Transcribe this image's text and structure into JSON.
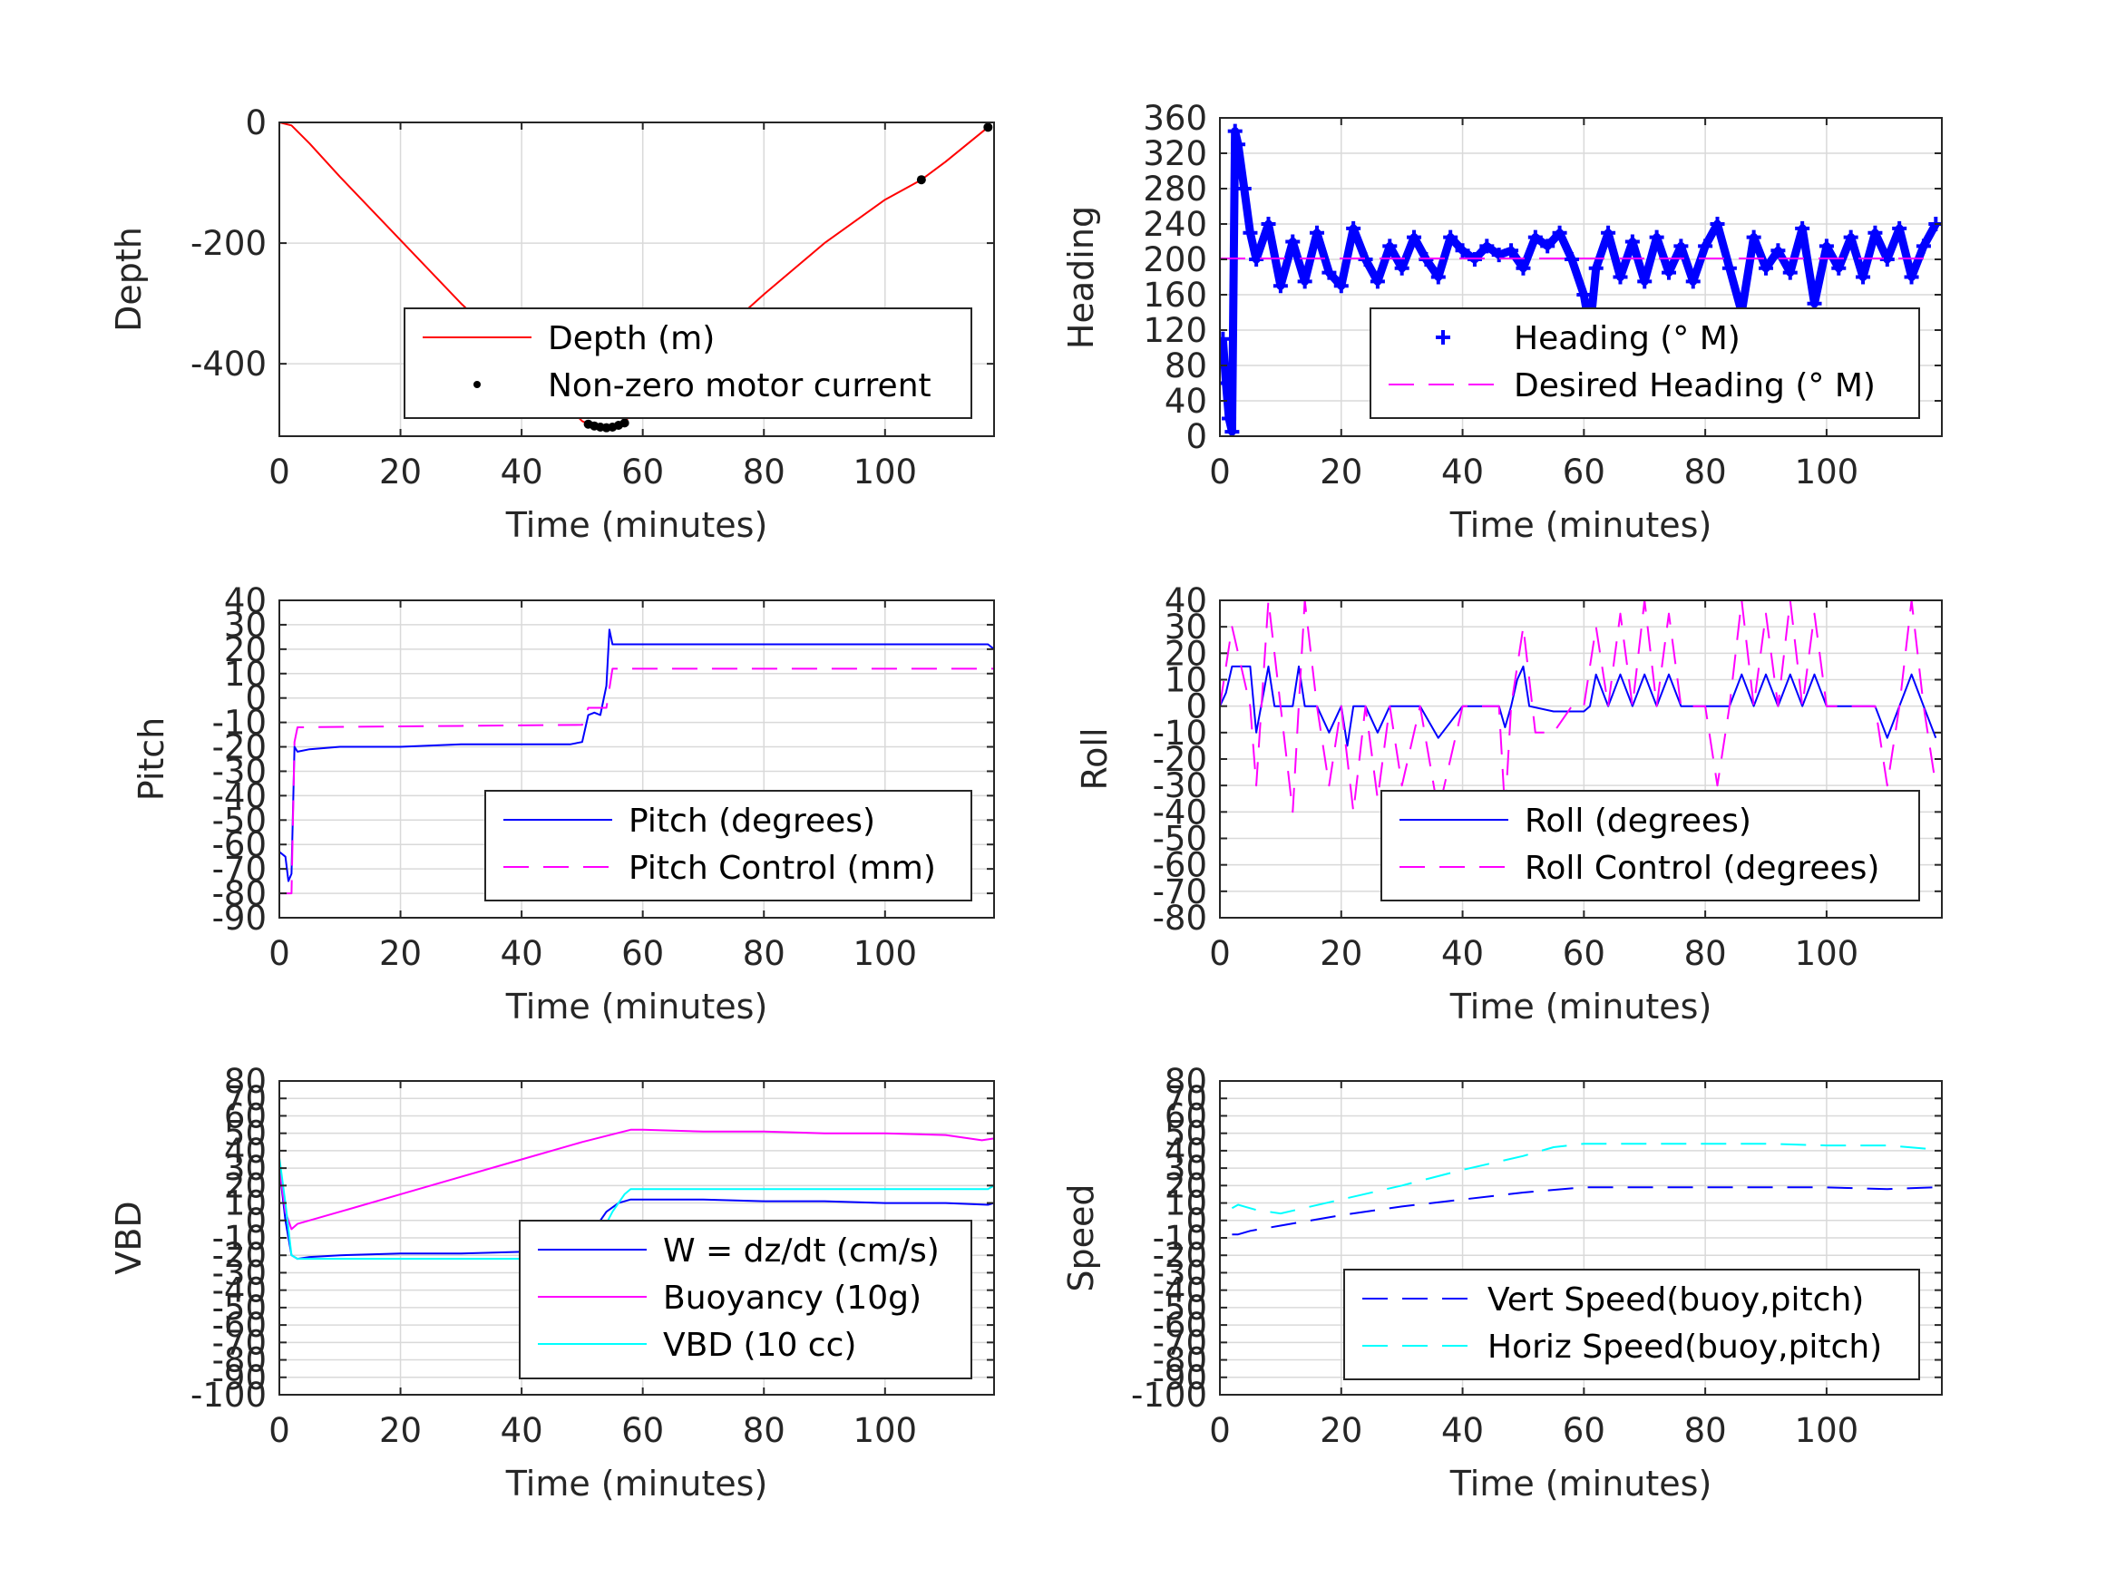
{
  "chart_data": [
    {
      "type": "line",
      "xlabel": "Time (minutes)",
      "ylabel": "Depth",
      "xlim": [
        0,
        118
      ],
      "ylim": [
        -520,
        0
      ],
      "xticks": [
        0,
        20,
        40,
        60,
        80,
        100
      ],
      "yticks": [
        0,
        -200,
        -400
      ],
      "ytick_labels": [
        "0",
        "-200",
        "-400"
      ],
      "legend": "inside-lower-right",
      "series": [
        {
          "name": "Depth (m)",
          "style": "solid",
          "color": "#ff0000",
          "x": [
            0,
            2,
            5,
            10,
            20,
            30,
            40,
            50,
            52,
            55,
            57,
            60,
            70,
            80,
            90,
            100,
            106,
            110,
            117
          ],
          "y": [
            0,
            -5,
            -35,
            -90,
            -195,
            -300,
            -395,
            -495,
            -505,
            -505,
            -495,
            -470,
            -375,
            -285,
            -200,
            -128,
            -95,
            -65,
            -8
          ]
        },
        {
          "name": "Non-zero motor current",
          "style": "dots",
          "color": "#000000",
          "x": [
            51,
            52,
            53,
            54,
            55,
            56,
            57,
            106,
            117
          ],
          "y": [
            -500,
            -503,
            -505,
            -506,
            -505,
            -502,
            -498,
            -95,
            -8
          ]
        }
      ]
    },
    {
      "type": "line",
      "xlabel": "Time (minutes)",
      "ylabel": "Heading",
      "xlim": [
        0,
        119
      ],
      "ylim": [
        0,
        360
      ],
      "xticks": [
        0,
        20,
        40,
        60,
        80,
        100
      ],
      "yticks": [
        0,
        40,
        80,
        120,
        160,
        200,
        240,
        280,
        320,
        360
      ],
      "ytick_labels": [
        "0",
        "40",
        "80",
        "120",
        "160",
        "200",
        "240",
        "280",
        "320",
        "360"
      ],
      "legend": "inside-lower-right",
      "series": [
        {
          "name": "Heading (° M)",
          "style": "plus",
          "color": "#0000ff",
          "x": [
            0.5,
            1,
            1.5,
            2,
            2.5,
            3,
            4,
            5,
            6,
            8,
            10,
            12,
            14,
            16,
            18,
            20,
            22,
            24,
            26,
            28,
            30,
            32,
            34,
            36,
            38,
            40,
            42,
            44,
            46,
            48,
            50,
            52,
            54,
            56,
            58,
            60,
            61,
            62,
            64,
            66,
            68,
            70,
            72,
            74,
            76,
            78,
            80,
            82,
            84,
            86,
            88,
            90,
            92,
            94,
            96,
            98,
            100,
            102,
            104,
            106,
            108,
            110,
            112,
            114,
            116,
            118
          ],
          "y": [
            110,
            60,
            20,
            5,
            345,
            330,
            280,
            230,
            200,
            240,
            170,
            220,
            175,
            230,
            185,
            170,
            235,
            200,
            175,
            215,
            190,
            225,
            200,
            180,
            225,
            210,
            200,
            215,
            205,
            210,
            190,
            225,
            215,
            230,
            200,
            160,
            120,
            190,
            230,
            180,
            220,
            175,
            225,
            185,
            215,
            175,
            215,
            240,
            190,
            140,
            225,
            190,
            210,
            185,
            235,
            150,
            215,
            190,
            225,
            180,
            230,
            200,
            235,
            180,
            215,
            240
          ]
        },
        {
          "name": "Desired Heading (° M)",
          "style": "dashed",
          "color": "#ff00ff",
          "x": [
            0,
            118
          ],
          "y": [
            201,
            201
          ]
        }
      ]
    },
    {
      "type": "line",
      "xlabel": "Time (minutes)",
      "ylabel": "Pitch",
      "xlim": [
        0,
        118
      ],
      "ylim": [
        -90,
        40
      ],
      "xticks": [
        0,
        20,
        40,
        60,
        80,
        100
      ],
      "yticks": [
        40,
        30,
        20,
        10,
        0,
        -10,
        -20,
        -30,
        -40,
        -50,
        -60,
        -70,
        -80,
        -90
      ],
      "ytick_labels": [
        "40",
        "30",
        "20",
        "10",
        "0",
        "-10",
        "-20",
        "-30",
        "-40",
        "-50",
        "-60",
        "-70",
        "-80",
        "-90"
      ],
      "legend": "inside-lower-right",
      "series": [
        {
          "name": "Pitch (degrees)",
          "style": "solid",
          "color": "#0000ff",
          "x": [
            0,
            1,
            1.5,
            2,
            2.5,
            3,
            5,
            10,
            20,
            30,
            40,
            48,
            50,
            51,
            52,
            53,
            54,
            54.5,
            55,
            56,
            60,
            70,
            80,
            90,
            100,
            110,
            117,
            118
          ],
          "y": [
            -63,
            -65,
            -75,
            -72,
            -20,
            -22,
            -21,
            -20,
            -20,
            -19,
            -19,
            -19,
            -18,
            -7,
            -6,
            -7,
            5,
            28,
            22,
            22,
            22,
            22,
            22,
            22,
            22,
            22,
            22,
            20
          ]
        },
        {
          "name": "Pitch Control (mm)",
          "style": "dashed",
          "color": "#ff00ff",
          "x": [
            0,
            1.5,
            2,
            2.5,
            3,
            50,
            51,
            53,
            54,
            55,
            118
          ],
          "y": [
            -80,
            -80,
            -80,
            -18,
            -12,
            -11,
            -4,
            -4,
            -4,
            12,
            12
          ]
        }
      ]
    },
    {
      "type": "line",
      "xlabel": "Time (minutes)",
      "ylabel": "Roll",
      "xlim": [
        0,
        119
      ],
      "ylim": [
        -80,
        40
      ],
      "xticks": [
        0,
        20,
        40,
        60,
        80,
        100
      ],
      "yticks": [
        40,
        30,
        20,
        10,
        0,
        -10,
        -20,
        -30,
        -40,
        -50,
        -60,
        -70,
        -80
      ],
      "ytick_labels": [
        "40",
        "30",
        "20",
        "10",
        "0",
        "-10",
        "-20",
        "-30",
        "-40",
        "-50",
        "-60",
        "-70",
        "-80"
      ],
      "legend": "inside-lower-right",
      "series": [
        {
          "name": "Roll (degrees)",
          "style": "solid",
          "color": "#0000ff",
          "x": [
            0,
            1,
            2,
            3,
            5,
            6,
            8,
            9,
            10,
            12,
            13,
            14,
            16,
            18,
            20,
            21,
            22,
            24,
            26,
            28,
            30,
            33,
            36,
            40,
            44,
            46,
            47,
            48,
            49,
            50,
            51,
            55,
            60,
            61,
            62,
            64,
            66,
            68,
            70,
            72,
            74,
            76,
            78,
            80,
            82,
            84,
            86,
            88,
            90,
            92,
            94,
            96,
            98,
            100,
            102,
            104,
            106,
            108,
            110,
            112,
            114,
            116,
            118
          ],
          "y": [
            0,
            5,
            15,
            15,
            15,
            -10,
            15,
            0,
            0,
            0,
            15,
            0,
            0,
            -10,
            0,
            -15,
            0,
            0,
            -10,
            0,
            0,
            0,
            -12,
            0,
            0,
            0,
            -8,
            0,
            10,
            15,
            0,
            -2,
            -2,
            0,
            12,
            0,
            12,
            0,
            12,
            0,
            12,
            0,
            0,
            0,
            0,
            0,
            12,
            0,
            12,
            0,
            12,
            0,
            12,
            0,
            0,
            0,
            0,
            0,
            -12,
            0,
            12,
            0,
            -12
          ]
        },
        {
          "name": "Roll Control (degrees)",
          "style": "dashed",
          "color": "#ff00ff",
          "x": [
            0,
            2,
            3,
            5,
            6,
            8,
            10,
            12,
            14,
            16,
            18,
            20,
            22,
            24,
            26,
            28,
            30,
            33,
            36,
            40,
            44,
            46,
            47,
            48,
            50,
            52,
            55,
            58,
            60,
            62,
            64,
            66,
            68,
            70,
            72,
            74,
            76,
            78,
            80,
            82,
            84,
            86,
            88,
            90,
            92,
            94,
            96,
            98,
            100,
            102,
            104,
            106,
            108,
            110,
            112,
            114,
            116,
            118
          ],
          "y": [
            0,
            30,
            20,
            0,
            -30,
            40,
            0,
            -40,
            40,
            0,
            -30,
            0,
            -40,
            0,
            -35,
            0,
            -30,
            0,
            -40,
            0,
            0,
            0,
            -40,
            0,
            30,
            -10,
            -10,
            0,
            0,
            30,
            0,
            35,
            0,
            40,
            0,
            35,
            0,
            0,
            0,
            -30,
            0,
            40,
            0,
            35,
            0,
            40,
            0,
            35,
            0,
            0,
            0,
            0,
            0,
            -30,
            0,
            40,
            0,
            -30
          ]
        }
      ]
    },
    {
      "type": "line",
      "xlabel": "Time (minutes)",
      "ylabel": "VBD",
      "xlim": [
        0,
        118
      ],
      "ylim": [
        -100,
        80
      ],
      "xticks": [
        0,
        20,
        40,
        60,
        80,
        100
      ],
      "yticks": [
        80,
        70,
        60,
        50,
        40,
        30,
        20,
        10,
        0,
        -10,
        -20,
        -30,
        -40,
        -50,
        -60,
        -70,
        -80,
        -90,
        -100
      ],
      "ytick_labels": [
        "80",
        "70",
        "60",
        "50",
        "40",
        "30",
        "20",
        "10",
        "0",
        "-10",
        "-20",
        "-30",
        "-40",
        "-50",
        "-60",
        "-70",
        "-80",
        "-90",
        "-100"
      ],
      "legend": "inside-lower-right",
      "series": [
        {
          "name": "W = dz/dt (cm/s)",
          "style": "solid",
          "color": "#0000ff",
          "x": [
            0,
            1,
            2,
            3,
            5,
            10,
            20,
            30,
            40,
            50,
            51,
            52,
            54,
            56,
            58,
            60,
            70,
            80,
            90,
            100,
            110,
            117,
            118
          ],
          "y": [
            30,
            0,
            -20,
            -22,
            -21,
            -20,
            -19,
            -19,
            -18,
            -18,
            -10,
            -5,
            5,
            10,
            12,
            12,
            12,
            11,
            11,
            10,
            10,
            9,
            10
          ]
        },
        {
          "name": "Buoyancy (10g)",
          "style": "solid",
          "color": "#ff00ff",
          "x": [
            0,
            1,
            2,
            3,
            10,
            20,
            30,
            40,
            50,
            58,
            60,
            70,
            80,
            90,
            100,
            110,
            116,
            118
          ],
          "y": [
            30,
            5,
            -5,
            -2,
            5,
            15,
            25,
            35,
            45,
            52,
            52,
            51,
            51,
            50,
            50,
            49,
            46,
            47
          ]
        },
        {
          "name": "VBD (10 cc)",
          "style": "solid",
          "color": "#00ffff",
          "x": [
            0,
            1,
            2,
            3,
            5,
            10,
            20,
            30,
            40,
            50,
            52,
            55,
            57,
            58,
            60,
            70,
            80,
            90,
            100,
            110,
            117,
            118
          ],
          "y": [
            36,
            10,
            -20,
            -22,
            -22,
            -22,
            -22,
            -22,
            -22,
            -22,
            -15,
            5,
            15,
            18,
            18,
            18,
            18,
            18,
            18,
            18,
            18,
            20
          ]
        }
      ]
    },
    {
      "type": "line",
      "xlabel": "Time (minutes)",
      "ylabel": "Speed",
      "xlim": [
        0,
        119
      ],
      "ylim": [
        -100,
        80
      ],
      "xticks": [
        0,
        20,
        40,
        60,
        80,
        100
      ],
      "yticks": [
        80,
        70,
        60,
        50,
        40,
        30,
        20,
        10,
        0,
        -10,
        -20,
        -30,
        -40,
        -50,
        -60,
        -70,
        -80,
        -90,
        -100
      ],
      "ytick_labels": [
        "80",
        "70",
        "60",
        "50",
        "40",
        "30",
        "20",
        "10",
        "0",
        "-10",
        "-20",
        "-30",
        "-40",
        "-50",
        "-60",
        "-70",
        "-80",
        "-90",
        "-100"
      ],
      "legend": "inside-lower-right",
      "series": [
        {
          "name": "Vert Speed(buoy,pitch)",
          "style": "dashed",
          "color": "#0000ff",
          "x": [
            2,
            3,
            5,
            10,
            20,
            30,
            40,
            50,
            60,
            70,
            80,
            90,
            100,
            110,
            118
          ],
          "y": [
            -8,
            -8,
            -6,
            -3,
            3,
            8,
            12,
            16,
            19,
            19,
            19,
            19,
            19,
            18,
            19
          ]
        },
        {
          "name": "Horiz Speed(buoy,pitch)",
          "style": "dashed",
          "color": "#00ffff",
          "x": [
            2,
            3,
            4,
            6,
            10,
            20,
            30,
            40,
            50,
            55,
            60,
            70,
            80,
            90,
            100,
            110,
            117,
            118
          ],
          "y": [
            7,
            9,
            8,
            6,
            4,
            12,
            20,
            29,
            37,
            42,
            44,
            44,
            44,
            44,
            43,
            43,
            41,
            42
          ]
        }
      ]
    }
  ]
}
